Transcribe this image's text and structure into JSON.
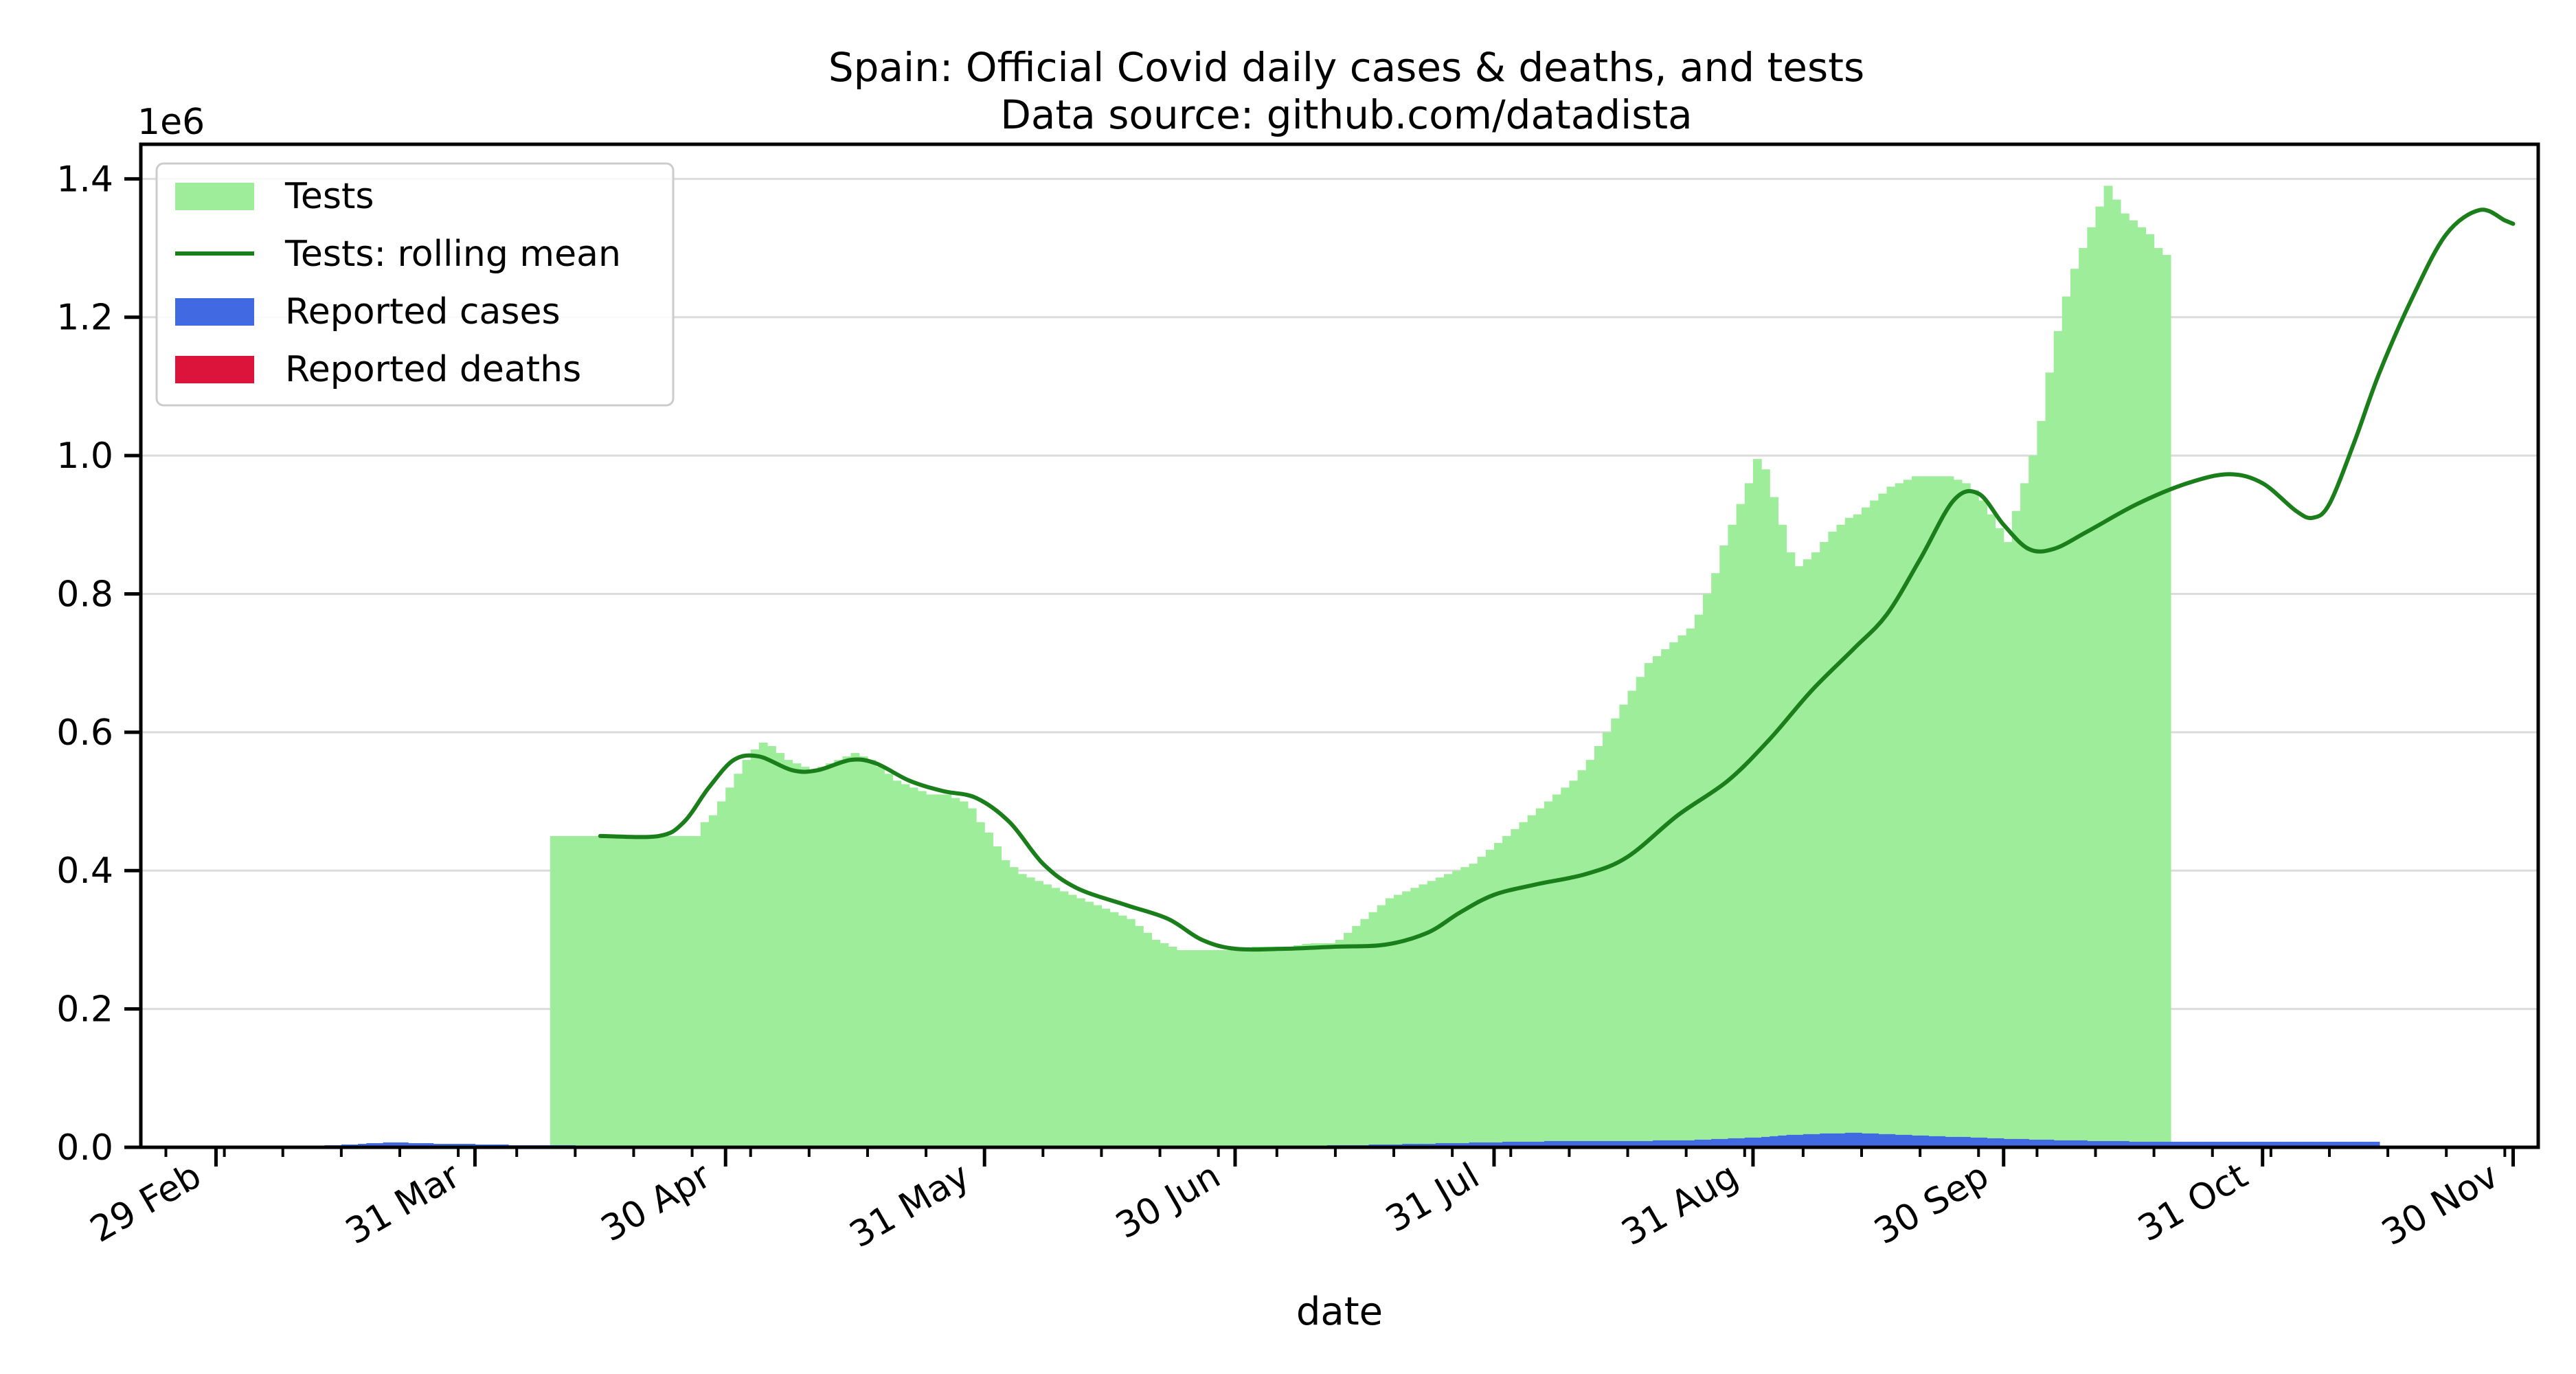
{
  "chart_data": {
    "type": "bar",
    "title": "Spain: Official Covid daily cases & deaths, and tests",
    "subtitle": "Data source: github.com/datadista",
    "xlabel": "date",
    "ylabel": "",
    "y_offset_label": "1e6",
    "ylim": [
      0,
      1.45
    ],
    "xlim": [
      "2020-02-20",
      "2020-12-03"
    ],
    "grid": "horizontal",
    "legend_position": "top-left",
    "x_ticks": [
      {
        "date": "2020-02-29",
        "label": "29 Feb"
      },
      {
        "date": "2020-03-31",
        "label": "31 Mar"
      },
      {
        "date": "2020-04-30",
        "label": "30 Apr"
      },
      {
        "date": "2020-05-31",
        "label": "31 May"
      },
      {
        "date": "2020-06-30",
        "label": "30 Jun"
      },
      {
        "date": "2020-07-31",
        "label": "31 Jul"
      },
      {
        "date": "2020-08-31",
        "label": "31 Aug"
      },
      {
        "date": "2020-09-30",
        "label": "30 Sep"
      },
      {
        "date": "2020-10-31",
        "label": "31 Oct"
      },
      {
        "date": "2020-11-30",
        "label": "30 Nov"
      }
    ],
    "y_ticks": [
      {
        "value": 0.0,
        "label": "0.0"
      },
      {
        "value": 0.2,
        "label": "0.2"
      },
      {
        "value": 0.4,
        "label": "0.4"
      },
      {
        "value": 0.6,
        "label": "0.6"
      },
      {
        "value": 0.8,
        "label": "0.8"
      },
      {
        "value": 1.0,
        "label": "1.0"
      },
      {
        "value": 1.2,
        "label": "1.2"
      },
      {
        "value": 1.4,
        "label": "1.4"
      }
    ],
    "legend": [
      {
        "label": "Tests",
        "kind": "patch",
        "color": "#9ded9a"
      },
      {
        "label": "Tests: rolling mean",
        "kind": "line",
        "color": "#1a7f1a"
      },
      {
        "label": "Reported cases",
        "kind": "patch",
        "color": "#4169e1"
      },
      {
        "label": "Reported deaths",
        "kind": "patch",
        "color": "#dc143c"
      }
    ],
    "series": [
      {
        "name": "Tests",
        "kind": "bar",
        "color": "#9ded9a",
        "start_date": "2020-04-09",
        "values": [
          0.45,
          0.45,
          0.45,
          0.45,
          0.45,
          0.45,
          0.45,
          0.45,
          0.45,
          0.45,
          0.45,
          0.45,
          0.45,
          0.45,
          0.45,
          0.45,
          0.45,
          0.45,
          0.47,
          0.48,
          0.5,
          0.52,
          0.54,
          0.56,
          0.575,
          0.585,
          0.58,
          0.57,
          0.56,
          0.555,
          0.55,
          0.545,
          0.55,
          0.555,
          0.56,
          0.565,
          0.57,
          0.565,
          0.56,
          0.55,
          0.54,
          0.53,
          0.525,
          0.52,
          0.515,
          0.51,
          0.51,
          0.51,
          0.505,
          0.5,
          0.49,
          0.47,
          0.455,
          0.435,
          0.415,
          0.405,
          0.395,
          0.39,
          0.385,
          0.38,
          0.375,
          0.37,
          0.365,
          0.36,
          0.355,
          0.35,
          0.345,
          0.34,
          0.335,
          0.33,
          0.32,
          0.31,
          0.3,
          0.295,
          0.29,
          0.285,
          0.285,
          0.285,
          0.285,
          0.285,
          0.285,
          0.285,
          0.285,
          0.288,
          0.29,
          0.29,
          0.29,
          0.29,
          0.29,
          0.292,
          0.294,
          0.295,
          0.295,
          0.295,
          0.3,
          0.31,
          0.32,
          0.33,
          0.34,
          0.35,
          0.36,
          0.365,
          0.37,
          0.375,
          0.38,
          0.385,
          0.39,
          0.395,
          0.4,
          0.405,
          0.41,
          0.42,
          0.43,
          0.44,
          0.45,
          0.46,
          0.47,
          0.48,
          0.49,
          0.5,
          0.51,
          0.52,
          0.53,
          0.545,
          0.56,
          0.58,
          0.6,
          0.62,
          0.64,
          0.66,
          0.68,
          0.7,
          0.71,
          0.72,
          0.73,
          0.74,
          0.75,
          0.77,
          0.8,
          0.83,
          0.87,
          0.9,
          0.93,
          0.96,
          0.995,
          0.98,
          0.94,
          0.9,
          0.86,
          0.84,
          0.85,
          0.86,
          0.875,
          0.89,
          0.9,
          0.91,
          0.915,
          0.925,
          0.935,
          0.945,
          0.955,
          0.96,
          0.965,
          0.97,
          0.97,
          0.97,
          0.97,
          0.97,
          0.965,
          0.96,
          0.95,
          0.935,
          0.915,
          0.895,
          0.875,
          0.92,
          0.96,
          1.0,
          1.05,
          1.12,
          1.18,
          1.23,
          1.27,
          1.3,
          1.33,
          1.36,
          1.39,
          1.37,
          1.35,
          1.34,
          1.33,
          1.32,
          1.3,
          1.29
        ]
      },
      {
        "name": "Tests: rolling mean",
        "kind": "line",
        "color": "#1a7f1a",
        "points": [
          [
            "2020-04-15",
            0.45
          ],
          [
            "2020-04-22",
            0.45
          ],
          [
            "2020-04-25",
            0.47
          ],
          [
            "2020-04-28",
            0.52
          ],
          [
            "2020-05-01",
            0.56
          ],
          [
            "2020-05-04",
            0.565
          ],
          [
            "2020-05-08",
            0.545
          ],
          [
            "2020-05-11",
            0.545
          ],
          [
            "2020-05-15",
            0.56
          ],
          [
            "2020-05-18",
            0.555
          ],
          [
            "2020-05-22",
            0.53
          ],
          [
            "2020-05-26",
            0.515
          ],
          [
            "2020-05-30",
            0.505
          ],
          [
            "2020-06-03",
            0.47
          ],
          [
            "2020-06-07",
            0.41
          ],
          [
            "2020-06-11",
            0.375
          ],
          [
            "2020-06-17",
            0.35
          ],
          [
            "2020-06-22",
            0.33
          ],
          [
            "2020-06-26",
            0.3
          ],
          [
            "2020-06-30",
            0.287
          ],
          [
            "2020-07-06",
            0.287
          ],
          [
            "2020-07-12",
            0.29
          ],
          [
            "2020-07-18",
            0.293
          ],
          [
            "2020-07-23",
            0.31
          ],
          [
            "2020-07-27",
            0.34
          ],
          [
            "2020-07-31",
            0.365
          ],
          [
            "2020-08-05",
            0.38
          ],
          [
            "2020-08-11",
            0.395
          ],
          [
            "2020-08-16",
            0.42
          ],
          [
            "2020-08-22",
            0.48
          ],
          [
            "2020-08-28",
            0.53
          ],
          [
            "2020-09-02",
            0.59
          ],
          [
            "2020-09-07",
            0.66
          ],
          [
            "2020-09-12",
            0.72
          ],
          [
            "2020-09-16",
            0.77
          ],
          [
            "2020-09-20",
            0.85
          ],
          [
            "2020-09-24",
            0.935
          ],
          [
            "2020-09-27",
            0.945
          ],
          [
            "2020-09-30",
            0.9
          ],
          [
            "2020-10-03",
            0.865
          ],
          [
            "2020-10-06",
            0.865
          ],
          [
            "2020-10-10",
            0.89
          ],
          [
            "2020-10-16",
            0.93
          ],
          [
            "2020-10-22",
            0.96
          ],
          [
            "2020-10-27",
            0.973
          ],
          [
            "2020-10-31",
            0.96
          ],
          [
            "2020-11-04",
            0.92
          ],
          [
            "2020-11-06",
            0.91
          ],
          [
            "2020-11-08",
            0.93
          ],
          [
            "2020-11-11",
            1.02
          ],
          [
            "2020-11-14",
            1.12
          ],
          [
            "2020-11-18",
            1.23
          ],
          [
            "2020-11-22",
            1.32
          ],
          [
            "2020-11-26",
            1.355
          ],
          [
            "2020-11-29",
            1.34
          ],
          [
            "2020-11-30",
            1.335
          ]
        ]
      },
      {
        "name": "Reported cases",
        "kind": "bar",
        "color": "#4169e1",
        "start_date": "2020-03-08",
        "values": [
          0.0005,
          0.001,
          0.001,
          0.002,
          0.002,
          0.003,
          0.003,
          0.004,
          0.004,
          0.005,
          0.006,
          0.006,
          0.007,
          0.007,
          0.007,
          0.006,
          0.006,
          0.006,
          0.005,
          0.005,
          0.005,
          0.005,
          0.005,
          0.004,
          0.004,
          0.004,
          0.004,
          0.003,
          0.003,
          0.003,
          0.003,
          0.003,
          0.003,
          0.003,
          0.003,
          0.002,
          0.002,
          0.002,
          0.002,
          0.002,
          0.002,
          0.001,
          0.001,
          0.001,
          0.001,
          0.001,
          0.001,
          0.001,
          0.001,
          0.001,
          0.0005,
          0.0005,
          0.0005,
          0.0005,
          0.0005,
          0.0005,
          0.0005,
          0.0005,
          0.0005,
          0.0005,
          0.0005,
          0.0005,
          0.0005,
          0.0005,
          0.0005,
          0.0005,
          0.0005,
          0.0005,
          0.0005,
          0.0005,
          0.0005,
          0.0005,
          0.0005,
          0.0005,
          0.0005,
          0.0005,
          0.0005,
          0.0005,
          0.0005,
          0.0005,
          0.0005,
          0.0005,
          0.0005,
          0.0005,
          0.0005,
          0.0005,
          0.0005,
          0.0005,
          0.0005,
          0.0005,
          0.0005,
          0.0005,
          0.0005,
          0.0005,
          0.0005,
          0.0005,
          0.0005,
          0.0005,
          0.0005,
          0.0005,
          0.0005,
          0.0005,
          0.0005,
          0.0005,
          0.0005,
          0.0005,
          0.0005,
          0.0005,
          0.0005,
          0.0005,
          0.0005,
          0.001,
          0.001,
          0.001,
          0.001,
          0.001,
          0.001,
          0.001,
          0.002,
          0.002,
          0.002,
          0.002,
          0.002,
          0.002,
          0.002,
          0.003,
          0.003,
          0.003,
          0.003,
          0.003,
          0.004,
          0.004,
          0.004,
          0.004,
          0.005,
          0.005,
          0.005,
          0.005,
          0.006,
          0.006,
          0.006,
          0.006,
          0.007,
          0.007,
          0.007,
          0.007,
          0.008,
          0.008,
          0.008,
          0.008,
          0.008,
          0.009,
          0.009,
          0.009,
          0.009,
          0.009,
          0.009,
          0.009,
          0.009,
          0.009,
          0.009,
          0.009,
          0.009,
          0.009,
          0.01,
          0.01,
          0.01,
          0.01,
          0.01,
          0.011,
          0.011,
          0.012,
          0.012,
          0.013,
          0.013,
          0.014,
          0.014,
          0.015,
          0.016,
          0.017,
          0.018,
          0.018,
          0.019,
          0.019,
          0.02,
          0.02,
          0.02,
          0.021,
          0.021,
          0.02,
          0.02,
          0.019,
          0.019,
          0.018,
          0.018,
          0.017,
          0.017,
          0.016,
          0.016,
          0.015,
          0.015,
          0.015,
          0.014,
          0.014,
          0.013,
          0.013,
          0.012,
          0.012,
          0.012,
          0.011,
          0.011,
          0.011,
          0.01,
          0.01,
          0.01,
          0.01,
          0.009,
          0.009,
          0.009,
          0.009,
          0.009,
          0.008,
          0.008,
          0.008,
          0.008,
          0.008,
          0.008,
          0.008,
          0.008,
          0.008,
          0.008,
          0.008,
          0.008,
          0.008,
          0.008,
          0.008,
          0.008,
          0.008,
          0.008,
          0.008,
          0.008,
          0.008,
          0.008,
          0.008,
          0.008,
          0.008,
          0.008,
          0.008,
          0.008,
          0.008,
          0.008
        ]
      },
      {
        "name": "Reported deaths",
        "kind": "bar",
        "color": "#dc143c",
        "start_date": "2020-03-08",
        "values": [
          0.0001,
          0.0002,
          0.0003,
          0.0004,
          0.0005,
          0.0006,
          0.0007,
          0.0008,
          0.0008,
          0.0008,
          0.0008,
          0.0007,
          0.0007,
          0.0006,
          0.0006,
          0.0005,
          0.0005,
          0.0004,
          0.0004,
          0.0004,
          0.0003,
          0.0003,
          0.0003,
          0.0002,
          0.0002,
          0.0002,
          0.0002,
          0.0001,
          0.0001,
          0.0001
        ]
      }
    ]
  }
}
